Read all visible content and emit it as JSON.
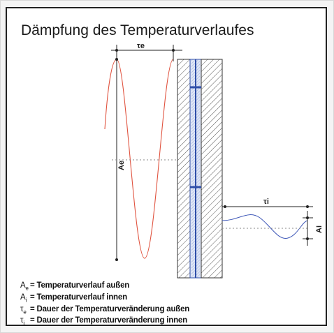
{
  "title": "Dämpfung des Temperaturverlaufes",
  "labels": {
    "tau_e": "τe",
    "tau_i": "τi",
    "a_e": "Ae",
    "a_i": "Ai"
  },
  "legend": [
    {
      "symbol": "A",
      "sub": "e",
      "text": "= Temperaturverlauf außen"
    },
    {
      "symbol": "A",
      "sub": "i",
      "text": "= Temperaturverlauf innen"
    },
    {
      "symbol": "τ",
      "sub": "e",
      "text": "= Dauer der Temperaturveränderung außen"
    },
    {
      "symbol": "τ",
      "sub": "i",
      "text": "= Dauer der Temperaturveränderung innen"
    }
  ],
  "colors": {
    "outer_curve": "#e0533f",
    "inner_curve": "#3f58b8",
    "insulation": "#2f4ea8",
    "wall_hatch": "#555555"
  }
}
